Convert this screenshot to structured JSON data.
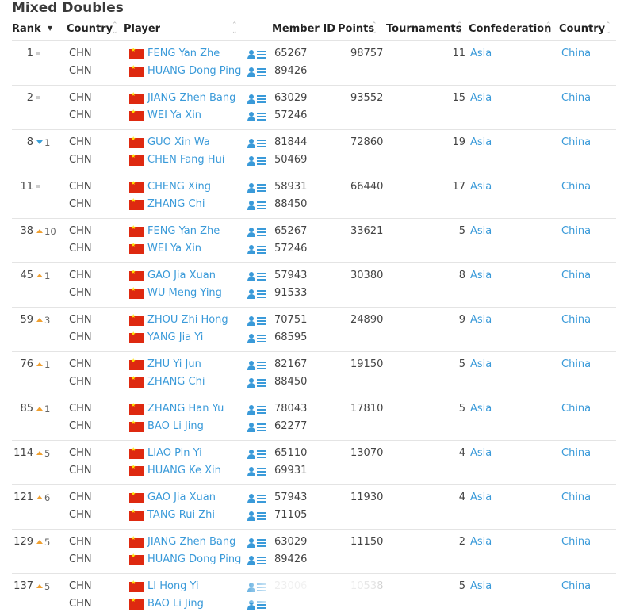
{
  "title": "Mixed Doubles",
  "headers": {
    "rank": "Rank",
    "country": "Country",
    "player": "Player",
    "member_id": "Member ID",
    "points": "Points",
    "tournaments": "Tournaments",
    "confederation": "Confederation",
    "country2": "Country"
  },
  "colors": {
    "link": "#3a9ad9",
    "up": "#f0a030",
    "down": "#3aa0d8",
    "flag": "#de2910"
  },
  "icons": {
    "flag": "china-flag-icon",
    "profile": "player-profile-icon",
    "sort": "sort-icon"
  },
  "rows": [
    {
      "rank": "1",
      "move": "",
      "dir": "none",
      "players": [
        {
          "country": "CHN",
          "name": "FENG Yan Zhe",
          "id": "65267"
        },
        {
          "country": "CHN",
          "name": "HUANG Dong Ping",
          "id": "89426"
        }
      ],
      "points": "98757",
      "tournaments": "11",
      "confederation": "Asia",
      "country": "China"
    },
    {
      "rank": "2",
      "move": "",
      "dir": "none",
      "players": [
        {
          "country": "CHN",
          "name": "JIANG Zhen Bang",
          "id": "63029"
        },
        {
          "country": "CHN",
          "name": "WEI Ya Xin",
          "id": "57246"
        }
      ],
      "points": "93552",
      "tournaments": "15",
      "confederation": "Asia",
      "country": "China"
    },
    {
      "rank": "8",
      "move": "1",
      "dir": "down",
      "players": [
        {
          "country": "CHN",
          "name": "GUO Xin Wa",
          "id": "81844"
        },
        {
          "country": "CHN",
          "name": "CHEN Fang Hui",
          "id": "50469"
        }
      ],
      "points": "72860",
      "tournaments": "19",
      "confederation": "Asia",
      "country": "China"
    },
    {
      "rank": "11",
      "move": "",
      "dir": "none",
      "players": [
        {
          "country": "CHN",
          "name": "CHENG Xing",
          "id": "58931"
        },
        {
          "country": "CHN",
          "name": "ZHANG Chi",
          "id": "88450"
        }
      ],
      "points": "66440",
      "tournaments": "17",
      "confederation": "Asia",
      "country": "China"
    },
    {
      "rank": "38",
      "move": "10",
      "dir": "up",
      "players": [
        {
          "country": "CHN",
          "name": "FENG Yan Zhe",
          "id": "65267"
        },
        {
          "country": "CHN",
          "name": "WEI Ya Xin",
          "id": "57246"
        }
      ],
      "points": "33621",
      "tournaments": "5",
      "confederation": "Asia",
      "country": "China"
    },
    {
      "rank": "45",
      "move": "1",
      "dir": "up",
      "players": [
        {
          "country": "CHN",
          "name": "GAO Jia Xuan",
          "id": "57943"
        },
        {
          "country": "CHN",
          "name": "WU Meng Ying",
          "id": "91533"
        }
      ],
      "points": "30380",
      "tournaments": "8",
      "confederation": "Asia",
      "country": "China"
    },
    {
      "rank": "59",
      "move": "3",
      "dir": "up",
      "players": [
        {
          "country": "CHN",
          "name": "ZHOU Zhi Hong",
          "id": "70751"
        },
        {
          "country": "CHN",
          "name": "YANG Jia Yi",
          "id": "68595"
        }
      ],
      "points": "24890",
      "tournaments": "9",
      "confederation": "Asia",
      "country": "China"
    },
    {
      "rank": "76",
      "move": "1",
      "dir": "up",
      "players": [
        {
          "country": "CHN",
          "name": "ZHU Yi Jun",
          "id": "82167"
        },
        {
          "country": "CHN",
          "name": "ZHANG Chi",
          "id": "88450"
        }
      ],
      "points": "19150",
      "tournaments": "5",
      "confederation": "Asia",
      "country": "China"
    },
    {
      "rank": "85",
      "move": "1",
      "dir": "up",
      "players": [
        {
          "country": "CHN",
          "name": "ZHANG Han Yu",
          "id": "78043"
        },
        {
          "country": "CHN",
          "name": "BAO Li Jing",
          "id": "62277"
        }
      ],
      "points": "17810",
      "tournaments": "5",
      "confederation": "Asia",
      "country": "China"
    },
    {
      "rank": "114",
      "move": "5",
      "dir": "up",
      "players": [
        {
          "country": "CHN",
          "name": "LIAO Pin Yi",
          "id": "65110"
        },
        {
          "country": "CHN",
          "name": "HUANG Ke Xin",
          "id": "69931"
        }
      ],
      "points": "13070",
      "tournaments": "4",
      "confederation": "Asia",
      "country": "China"
    },
    {
      "rank": "121",
      "move": "6",
      "dir": "up",
      "players": [
        {
          "country": "CHN",
          "name": "GAO Jia Xuan",
          "id": "57943"
        },
        {
          "country": "CHN",
          "name": "TANG Rui Zhi",
          "id": "71105"
        }
      ],
      "points": "11930",
      "tournaments": "4",
      "confederation": "Asia",
      "country": "China"
    },
    {
      "rank": "129",
      "move": "5",
      "dir": "up",
      "players": [
        {
          "country": "CHN",
          "name": "JIANG Zhen Bang",
          "id": "63029"
        },
        {
          "country": "CHN",
          "name": "HUANG Dong Ping",
          "id": "89426"
        }
      ],
      "points": "11150",
      "tournaments": "2",
      "confederation": "Asia",
      "country": "China"
    },
    {
      "rank": "137",
      "move": "5",
      "dir": "up",
      "players": [
        {
          "country": "CHN",
          "name": "LI Hong Yi",
          "id": "23006"
        },
        {
          "country": "CHN",
          "name": "BAO Li Jing",
          "id": ""
        }
      ],
      "points": "10538",
      "tournaments": "5",
      "confederation": "Asia",
      "country": "China"
    }
  ]
}
